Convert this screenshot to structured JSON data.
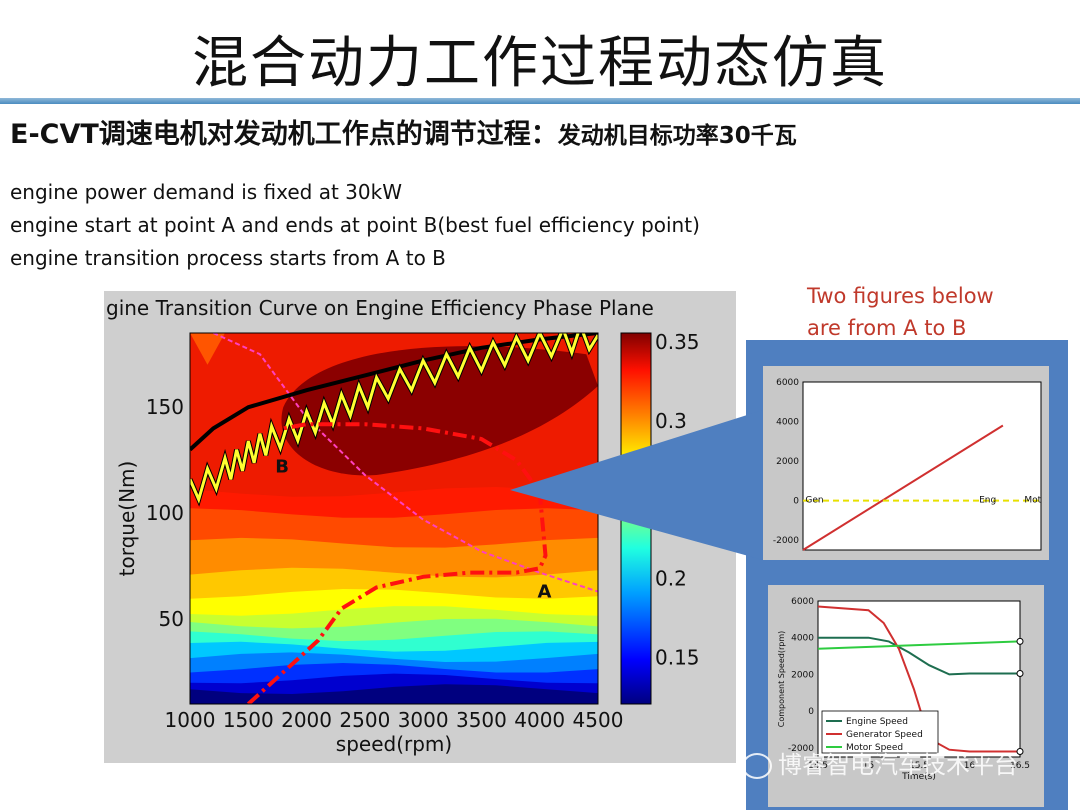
{
  "header": {
    "title": "混合动力工作过程动态仿真",
    "subtitle_main": "E-CVT调速电机对发动机工作点的调节过程：",
    "subtitle_small": "发动机目标功率30千瓦"
  },
  "notes": [
    "engine power demand is fixed at 30kW",
    "engine start  at point A and ends at point B(best fuel efficiency point)",
    "engine transition process starts from A to B"
  ],
  "red_note": [
    "Two figures below",
    "are from A to B"
  ],
  "watermark": "博睿智电汽车技术平台",
  "colors": {
    "accent_red": "#c0392b",
    "panel_blue": "#4f7fc0",
    "figure_gray": "#c8c8c8"
  },
  "chart_data": [
    {
      "type": "heatmap",
      "title": "gine Transition Curve on Engine Efficiency Phase Plane",
      "xlabel": "speed(rpm)",
      "ylabel": "torque(Nm)",
      "xlim": [
        1000,
        4500
      ],
      "ylim": [
        10,
        185
      ],
      "xticks": [
        1000,
        1500,
        2000,
        2500,
        3000,
        3500,
        4000,
        4500
      ],
      "xtick_labels": [
        "1000",
        "1500",
        "2000",
        "2500",
        "3000",
        "3500",
        "4000",
        "4500"
      ],
      "yticks": [
        50,
        100,
        150
      ],
      "ytick_labels": [
        "50",
        "100",
        "150"
      ],
      "colorbar": {
        "range": [
          0.12,
          0.355
        ],
        "ticks": [
          0.15,
          0.2,
          0.3,
          0.35
        ],
        "tick_labels": [
          "0.15",
          "0.2",
          "0.3",
          "0.35"
        ]
      },
      "points": [
        {
          "label": "A",
          "x": 4050,
          "y": 64
        },
        {
          "label": "B",
          "x": 1800,
          "y": 123
        }
      ],
      "max_torque_curve": {
        "x": [
          1000,
          1200,
          1500,
          2000,
          2500,
          3000,
          3500,
          4000,
          4500
        ],
        "y": [
          130,
          140,
          150,
          158,
          165,
          172,
          178,
          182,
          185
        ]
      },
      "transition_path": {
        "x": [
          1000,
          1300,
          1500,
          1700,
          2000,
          2300,
          2600,
          3000,
          3400,
          3800,
          4200,
          4500
        ],
        "y": [
          110,
          120,
          128,
          135,
          142,
          150,
          158,
          166,
          172,
          177,
          181,
          184
        ]
      },
      "dashdot_path": {
        "x": [
          1500,
          1800,
          2100,
          2300,
          2600,
          3000,
          3400,
          3800,
          4000,
          4050,
          4000,
          3800,
          3500,
          3000,
          2500,
          2000,
          1800
        ],
        "y": [
          10,
          25,
          40,
          55,
          65,
          70,
          72,
          72,
          74,
          80,
          110,
          125,
          135,
          140,
          142,
          142,
          140
        ]
      },
      "power_line": {
        "x": [
          1200,
          1600,
          2000,
          2500,
          3000,
          3500,
          4000,
          4500
        ],
        "y": [
          185,
          175,
          145,
          118,
          97,
          82,
          72,
          63
        ]
      }
    },
    {
      "type": "line",
      "ylim": [
        -2500,
        6000
      ],
      "yticks": [
        -2000,
        0,
        2000,
        4000,
        6000
      ],
      "ytick_labels": [
        "-2000",
        "0",
        "2000",
        "4000",
        "6000"
      ],
      "annotations": [
        "Gen",
        "Eng",
        "Mot"
      ],
      "series": [
        {
          "color": "#d03030",
          "x": [
            0,
            1
          ],
          "values": [
            -2500,
            3800
          ]
        },
        {
          "color": "#e8e000",
          "x": [
            0,
            1
          ],
          "values": [
            0,
            0
          ]
        }
      ]
    },
    {
      "type": "line",
      "xlabel": "Time(s)",
      "ylabel": "Component Speed(rpm)",
      "xlim": [
        14.5,
        16.5
      ],
      "ylim": [
        -2500,
        6000
      ],
      "xticks": [
        14.5,
        15,
        15.5,
        16,
        16.5
      ],
      "xtick_labels": [
        "14.5",
        "15",
        "15.5",
        "16",
        "16.5"
      ],
      "yticks": [
        -2000,
        0,
        2000,
        4000,
        6000
      ],
      "ytick_labels": [
        "-2000",
        "0",
        "2000",
        "4000",
        "6000"
      ],
      "series": [
        {
          "name": "Engine Speed",
          "color": "#1e6e50",
          "x": [
            14.5,
            15.0,
            15.2,
            15.4,
            15.6,
            15.8,
            16.0,
            16.5
          ],
          "values": [
            4000,
            4000,
            3800,
            3200,
            2500,
            2000,
            2050,
            2050
          ]
        },
        {
          "name": "Generator Speed",
          "color": "#d03030",
          "x": [
            14.5,
            15.0,
            15.15,
            15.3,
            15.45,
            15.6,
            15.8,
            16.0,
            16.5
          ],
          "values": [
            5700,
            5500,
            4800,
            3400,
            1200,
            -1500,
            -2100,
            -2200,
            -2200
          ]
        },
        {
          "name": "Motor Speed",
          "color": "#2ecc40",
          "x": [
            14.5,
            16.5
          ],
          "values": [
            3400,
            3800
          ]
        }
      ]
    }
  ]
}
